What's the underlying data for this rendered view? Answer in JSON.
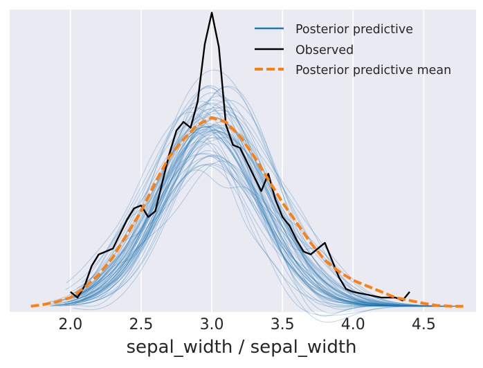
{
  "chart_data": {
    "type": "line",
    "title": "",
    "xlabel": "sepal_width / sepal_width",
    "ylabel": "",
    "xlim": [
      1.57,
      4.87
    ],
    "ylim": [
      -0.05,
      1.0
    ],
    "xticks": [
      "2.0",
      "2.5",
      "3.0",
      "3.5",
      "4.0",
      "4.5"
    ],
    "xtick_values": [
      2.0,
      2.5,
      3.0,
      3.5,
      4.0,
      4.5
    ],
    "grid": true,
    "legend_position": "top-right",
    "colors": {
      "background": "#eaeaf2",
      "grid": "#ffffff",
      "posterior_predictive": "#1f77b4",
      "observed": "#000000",
      "mean": "#ff7f0e"
    },
    "series": [
      {
        "name": "Posterior predictive",
        "style": "thin-translucent-samples",
        "sample_count": 60,
        "x_range": [
          1.85,
          4.75
        ],
        "note": "approximately normal KDE samples centered near 3.0"
      },
      {
        "name": "Observed",
        "style": "solid",
        "x": [
          2.0,
          2.05,
          2.1,
          2.15,
          2.2,
          2.25,
          2.3,
          2.35,
          2.4,
          2.45,
          2.5,
          2.55,
          2.6,
          2.65,
          2.7,
          2.75,
          2.8,
          2.85,
          2.9,
          2.95,
          3.0,
          3.05,
          3.1,
          3.15,
          3.2,
          3.25,
          3.3,
          3.35,
          3.4,
          3.45,
          3.5,
          3.55,
          3.6,
          3.65,
          3.7,
          3.75,
          3.8,
          3.85,
          3.9,
          3.95,
          4.0,
          4.1,
          4.2,
          4.3,
          4.35,
          4.4
        ],
        "y": [
          0.02,
          0.0,
          0.04,
          0.11,
          0.15,
          0.16,
          0.17,
          0.22,
          0.27,
          0.31,
          0.32,
          0.28,
          0.3,
          0.4,
          0.5,
          0.58,
          0.61,
          0.59,
          0.68,
          0.88,
          0.99,
          0.87,
          0.6,
          0.53,
          0.52,
          0.47,
          0.42,
          0.37,
          0.43,
          0.34,
          0.28,
          0.25,
          0.2,
          0.16,
          0.15,
          0.17,
          0.19,
          0.13,
          0.07,
          0.03,
          0.02,
          0.01,
          0.0,
          0.0,
          -0.01,
          0.02
        ]
      },
      {
        "name": "Posterior predictive mean",
        "style": "dashed",
        "x": [
          1.72,
          1.8,
          1.9,
          2.0,
          2.1,
          2.2,
          2.3,
          2.4,
          2.5,
          2.6,
          2.7,
          2.8,
          2.9,
          3.0,
          3.1,
          3.2,
          3.3,
          3.4,
          3.5,
          3.6,
          3.7,
          3.8,
          3.9,
          4.0,
          4.1,
          4.2,
          4.3,
          4.4,
          4.5,
          4.6,
          4.7,
          4.78
        ],
        "y": [
          -0.03,
          -0.025,
          -0.015,
          0.0,
          0.035,
          0.08,
          0.14,
          0.22,
          0.3,
          0.4,
          0.49,
          0.55,
          0.6,
          0.625,
          0.61,
          0.56,
          0.49,
          0.41,
          0.33,
          0.26,
          0.19,
          0.13,
          0.09,
          0.06,
          0.04,
          0.02,
          0.0,
          -0.01,
          -0.02,
          -0.028,
          -0.03,
          -0.03
        ]
      }
    ]
  }
}
